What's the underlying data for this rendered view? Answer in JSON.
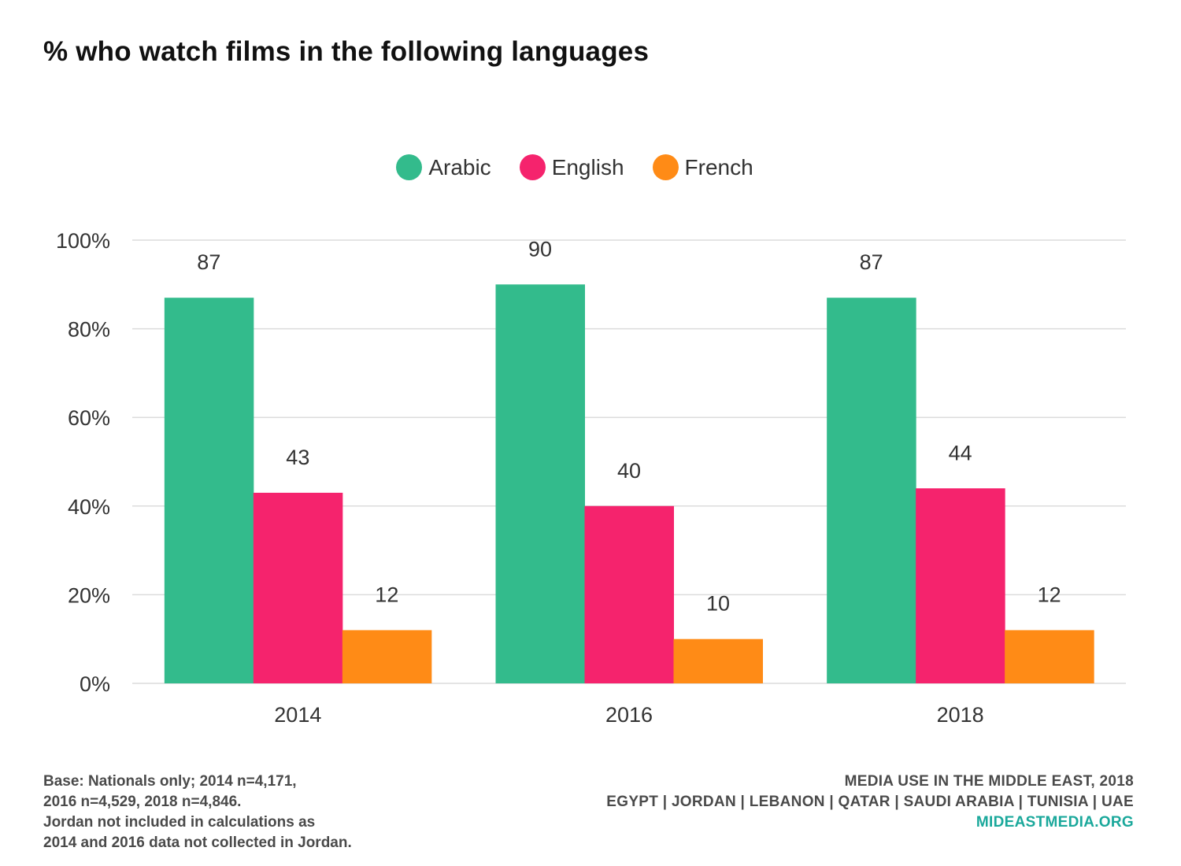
{
  "title": "% who watch films in the following languages",
  "colors": {
    "Arabic": "#33bb8c",
    "English": "#f5236d",
    "French": "#ff8b16"
  },
  "footer": {
    "base_lines": [
      "Base: Nationals only; 2014 n=4,171,",
      "2016 n=4,529, 2018 n=4,846.",
      "Jordan not included in calculations as",
      "2014 and 2016 data not collected in Jordan."
    ],
    "source_line1": "MEDIA USE IN THE MIDDLE EAST, 2018",
    "source_line2": "EGYPT | JORDAN | LEBANON | QATAR | SAUDI ARABIA | TUNISIA | UAE",
    "site": "MIDEASTMEDIA.ORG"
  },
  "chart_data": {
    "type": "bar",
    "title": "% who watch films in the following languages",
    "categories": [
      "2014",
      "2016",
      "2018"
    ],
    "series": [
      {
        "name": "Arabic",
        "values": [
          87,
          90,
          87
        ]
      },
      {
        "name": "English",
        "values": [
          43,
          40,
          44
        ]
      },
      {
        "name": "French",
        "values": [
          12,
          10,
          12
        ]
      }
    ],
    "ylim": [
      0,
      100
    ],
    "yticks": [
      "0%",
      "20%",
      "40%",
      "60%",
      "80%",
      "100%"
    ],
    "grid": true,
    "legend_position": "top-center",
    "xlabel": "",
    "ylabel": ""
  }
}
